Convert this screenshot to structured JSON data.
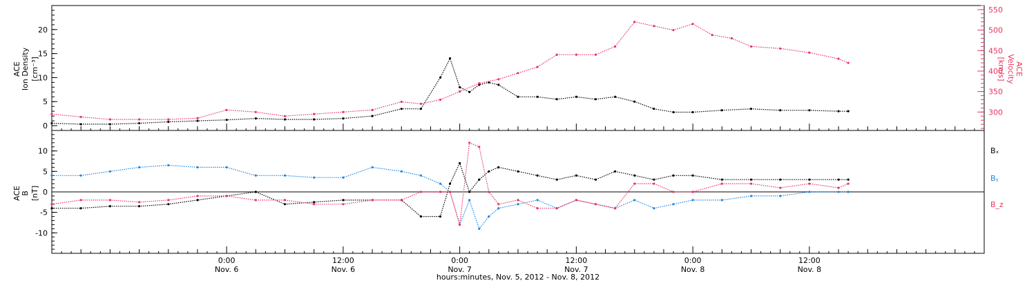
{
  "chart_data": [
    {
      "type": "scatter",
      "panel": "top",
      "ylabel": [
        "ACE",
        "Ion Density",
        "[cm⁻³]"
      ],
      "ylim": [
        -1,
        25
      ],
      "yticks": [
        "0",
        "5",
        "10",
        "15",
        "20"
      ],
      "ylabel_right": [
        "ACE",
        "Velocity",
        "[km/s]"
      ],
      "ylim_right": [
        255,
        560
      ],
      "yticks_right": [
        "300",
        "350",
        "400",
        "450",
        "500",
        "550"
      ],
      "x_hours_range": [
        -18,
        78
      ],
      "series": [
        {
          "color": "#000000",
          "axis": "left",
          "x_hours": [
            -18,
            -15,
            -12,
            -9,
            -6,
            -3,
            0,
            3,
            6,
            9,
            12,
            15,
            18,
            20,
            22,
            23,
            24,
            25,
            26,
            27,
            28,
            30,
            32,
            34,
            36,
            38,
            40,
            42,
            44,
            46,
            48,
            51,
            54,
            57,
            60,
            63,
            64
          ],
          "values": [
            0.5,
            0.3,
            0.3,
            0.5,
            0.8,
            1.0,
            1.2,
            1.5,
            1.3,
            1.3,
            1.5,
            2.0,
            3.5,
            3.5,
            10.0,
            14.0,
            8.0,
            7.0,
            8.5,
            9.0,
            8.5,
            6.0,
            6.0,
            5.5,
            6.0,
            5.5,
            6.0,
            5.0,
            3.5,
            2.8,
            2.8,
            3.2,
            3.5,
            3.2,
            3.2,
            3.0,
            3.0
          ]
        },
        {
          "color": "#e8335f",
          "axis": "right",
          "x_hours": [
            -18,
            -15,
            -12,
            -9,
            -6,
            -3,
            0,
            3,
            6,
            9,
            12,
            15,
            18,
            20,
            22,
            24,
            26,
            28,
            30,
            32,
            34,
            36,
            38,
            40,
            42,
            44,
            46,
            48,
            50,
            52,
            54,
            57,
            60,
            63,
            64
          ],
          "values": [
            295,
            288,
            282,
            282,
            282,
            285,
            305,
            300,
            290,
            295,
            300,
            305,
            325,
            320,
            330,
            350,
            370,
            380,
            395,
            410,
            440,
            440,
            440,
            460,
            520,
            510,
            500,
            515,
            488,
            480,
            460,
            455,
            445,
            430,
            420
          ]
        }
      ]
    },
    {
      "type": "scatter",
      "panel": "bottom",
      "ylabel": [
        "ACE",
        "B",
        "[nT]"
      ],
      "ylim": [
        -15,
        15
      ],
      "yticks": [
        "-10",
        "-5",
        "0",
        "5",
        "10"
      ],
      "zero_line": true,
      "x_hours_range": [
        -18,
        78
      ],
      "legend_position": "right",
      "series": [
        {
          "name": "Bₓ",
          "color": "#000000",
          "x_hours": [
            -18,
            -15,
            -12,
            -9,
            -6,
            -3,
            0,
            3,
            6,
            9,
            12,
            15,
            18,
            20,
            22,
            23,
            24,
            25,
            26,
            27,
            28,
            30,
            32,
            34,
            36,
            38,
            40,
            42,
            44,
            46,
            48,
            51,
            54,
            57,
            60,
            63,
            64
          ],
          "values": [
            -4,
            -4,
            -3.5,
            -3.5,
            -3,
            -2,
            -1,
            0,
            -3,
            -2.5,
            -2,
            -2,
            -2,
            -6,
            -6,
            2,
            7,
            0,
            3,
            5,
            6,
            5,
            4,
            3,
            4,
            3,
            5,
            4,
            3,
            4,
            4,
            3,
            3,
            3,
            3,
            3,
            3
          ]
        },
        {
          "name": "Bᵧ",
          "color": "#1c86e0",
          "x_hours": [
            -18,
            -15,
            -12,
            -9,
            -6,
            -3,
            0,
            3,
            6,
            9,
            12,
            15,
            18,
            20,
            22,
            23,
            24,
            25,
            26,
            27,
            28,
            30,
            32,
            34,
            36,
            38,
            40,
            42,
            44,
            46,
            48,
            51,
            54,
            57,
            60,
            63,
            64
          ],
          "values": [
            4,
            4,
            5,
            6,
            6.5,
            6,
            6,
            4,
            4,
            3.5,
            3.5,
            6,
            5,
            4,
            2,
            0,
            -8,
            -2,
            -9,
            -6,
            -4,
            -3,
            -2,
            -4,
            -2,
            -3,
            -4,
            -2,
            -4,
            -3,
            -2,
            -2,
            -1,
            -1,
            0,
            0,
            0
          ]
        },
        {
          "name": "B_z",
          "color": "#e8335f",
          "x_hours": [
            -18,
            -15,
            -12,
            -9,
            -6,
            -3,
            0,
            3,
            6,
            9,
            12,
            15,
            18,
            20,
            22,
            23,
            24,
            25,
            26,
            27,
            28,
            30,
            32,
            34,
            36,
            38,
            40,
            42,
            44,
            46,
            48,
            51,
            54,
            57,
            60,
            63,
            64
          ],
          "values": [
            -3,
            -2,
            -2,
            -2.5,
            -2,
            -1,
            -1,
            -2,
            -2,
            -3,
            -3,
            -2,
            -2,
            0,
            0,
            0,
            -8,
            12,
            11,
            0,
            -3,
            -2,
            -4,
            -4,
            -2,
            -3,
            -4,
            2,
            2,
            0,
            0,
            2,
            2,
            1,
            2,
            1,
            2
          ]
        }
      ]
    },
    {
      "axis": "x",
      "xlabel": "hours:minutes, Nov. 5, 2012 - Nov. 8, 2012",
      "ticks": [
        {
          "time": "0:00",
          "date": "Nov. 6"
        },
        {
          "time": "12:00",
          "date": "Nov. 6"
        },
        {
          "time": "0:00",
          "date": "Nov. 7"
        },
        {
          "time": "12:00",
          "date": "Nov. 7"
        },
        {
          "time": "0:00",
          "date": "Nov. 8"
        },
        {
          "time": "12:00",
          "date": "Nov. 8"
        }
      ],
      "ticks_hours": [
        0,
        12,
        24,
        36,
        48,
        60
      ]
    }
  ]
}
